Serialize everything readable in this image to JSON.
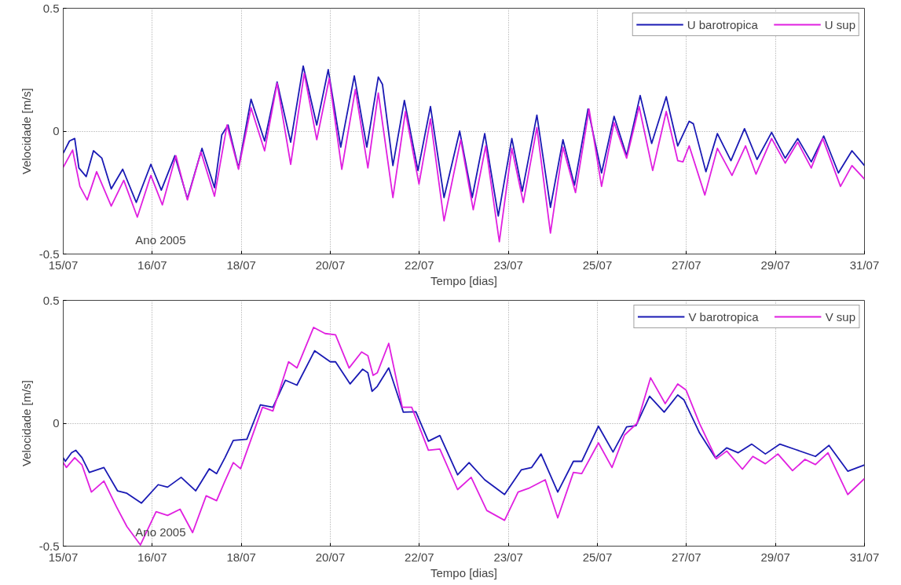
{
  "chart_data": [
    {
      "type": "line",
      "xlabel": "Tempo [dias]",
      "ylabel": "Velocidade [m/s]",
      "annotations": [
        "Ano 2005"
      ],
      "xlim": [
        "2005-07-15T00:00",
        "2005-07-31T00:00"
      ],
      "xticks": [
        {
          "value": "2005-07-15T00:00",
          "label": "15/07"
        },
        {
          "value": "2005-07-16T18:40",
          "label": "16/07"
        },
        {
          "value": "2005-07-18T13:20",
          "label": "18/07"
        },
        {
          "value": "2005-07-20T08:00",
          "label": "20/07"
        },
        {
          "value": "2005-07-22T02:40",
          "label": "22/07"
        },
        {
          "value": "2005-07-23T21:20",
          "label": "23/07"
        },
        {
          "value": "2005-07-25T16:00",
          "label": "25/07"
        },
        {
          "value": "2005-07-27T10:40",
          "label": "27/07"
        },
        {
          "value": "2005-07-29T05:20",
          "label": "29/07"
        },
        {
          "value": "2005-07-31T00:00",
          "label": "31/07"
        }
      ],
      "ylim": [
        -0.5,
        0.5
      ],
      "yticks": [
        -0.5,
        0,
        0.5
      ],
      "grid": true,
      "legend": "top right",
      "line_style": "solid",
      "series": [
        {
          "name": "U barotropica",
          "color": "#1a1ab4",
          "x": [
            "2005-07-15T00:00",
            "2005-07-15T03:00",
            "2005-07-15T05:30",
            "2005-07-15T07:30",
            "2005-07-15T11:00",
            "2005-07-15T14:30",
            "2005-07-15T18:30",
            "2005-07-15T23:00",
            "2005-07-16T04:30",
            "2005-07-16T11:00",
            "2005-07-16T18:00",
            "2005-07-16T23:00",
            "2005-07-17T05:30",
            "2005-07-17T11:30",
            "2005-07-17T18:30",
            "2005-07-18T00:30",
            "2005-07-18T04:00",
            "2005-07-18T07:00",
            "2005-07-18T12:00",
            "2005-07-18T18:00",
            "2005-07-19T00:30",
            "2005-07-19T06:30",
            "2005-07-19T13:00",
            "2005-07-19T19:00",
            "2005-07-20T01:30",
            "2005-07-20T07:00",
            "2005-07-20T13:00",
            "2005-07-20T19:30",
            "2005-07-21T01:30",
            "2005-07-21T07:00",
            "2005-07-21T09:00",
            "2005-07-21T14:00",
            "2005-07-21T19:30",
            "2005-07-22T02:00",
            "2005-07-22T08:00",
            "2005-07-22T14:30",
            "2005-07-22T22:00",
            "2005-07-23T04:00",
            "2005-07-23T10:00",
            "2005-07-23T16:30",
            "2005-07-23T23:00",
            "2005-07-24T04:00",
            "2005-07-24T11:00",
            "2005-07-24T17:30",
            "2005-07-24T23:30",
            "2005-07-25T05:00",
            "2005-07-25T11:30",
            "2005-07-25T18:00",
            "2005-07-26T00:00",
            "2005-07-26T06:00",
            "2005-07-26T12:30",
            "2005-07-26T18:00",
            "2005-07-27T01:00",
            "2005-07-27T06:30",
            "2005-07-27T12:00",
            "2005-07-27T14:00",
            "2005-07-27T20:00",
            "2005-07-28T01:30",
            "2005-07-28T08:00",
            "2005-07-28T14:30",
            "2005-07-28T20:30",
            "2005-07-29T03:30",
            "2005-07-29T10:00",
            "2005-07-29T16:00",
            "2005-07-29T22:30",
            "2005-07-30T04:30",
            "2005-07-30T11:30",
            "2005-07-30T18:00",
            "2005-07-31T00:00"
          ],
          "values": [
            -0.09,
            -0.04,
            -0.03,
            -0.15,
            -0.185,
            -0.08,
            -0.11,
            -0.235,
            -0.155,
            -0.29,
            -0.135,
            -0.24,
            -0.1,
            -0.275,
            -0.07,
            -0.23,
            -0.015,
            0.025,
            -0.15,
            0.13,
            -0.04,
            0.2,
            -0.045,
            0.265,
            0.025,
            0.25,
            -0.065,
            0.225,
            -0.065,
            0.22,
            0.19,
            -0.14,
            0.125,
            -0.16,
            0.1,
            -0.27,
            0.0,
            -0.27,
            -0.01,
            -0.345,
            -0.03,
            -0.245,
            0.065,
            -0.31,
            -0.035,
            -0.22,
            0.09,
            -0.17,
            0.06,
            -0.1,
            0.145,
            -0.05,
            0.14,
            -0.06,
            0.04,
            0.03,
            -0.165,
            -0.01,
            -0.12,
            0.01,
            -0.115,
            -0.005,
            -0.11,
            -0.03,
            -0.125,
            -0.02,
            -0.17,
            -0.08,
            -0.14
          ]
        },
        {
          "name": "U sup",
          "color": "#e020e0",
          "x": [
            "2005-07-15T00:00",
            "2005-07-15T04:30",
            "2005-07-15T08:00",
            "2005-07-15T11:30",
            "2005-07-15T16:00",
            "2005-07-15T23:00",
            "2005-07-16T05:00",
            "2005-07-16T11:30",
            "2005-07-16T18:00",
            "2005-07-16T23:30",
            "2005-07-17T06:00",
            "2005-07-17T11:30",
            "2005-07-17T18:00",
            "2005-07-18T00:30",
            "2005-07-18T06:30",
            "2005-07-18T12:00",
            "2005-07-18T18:00",
            "2005-07-19T00:30",
            "2005-07-19T06:30",
            "2005-07-19T13:00",
            "2005-07-19T19:30",
            "2005-07-20T01:30",
            "2005-07-20T07:30",
            "2005-07-20T13:30",
            "2005-07-20T20:00",
            "2005-07-21T02:00",
            "2005-07-21T07:00",
            "2005-07-21T14:00",
            "2005-07-21T20:00",
            "2005-07-22T02:30",
            "2005-07-22T08:00",
            "2005-07-22T14:30",
            "2005-07-22T22:30",
            "2005-07-23T04:30",
            "2005-07-23T10:30",
            "2005-07-23T17:00",
            "2005-07-23T23:00",
            "2005-07-24T04:30",
            "2005-07-24T11:00",
            "2005-07-24T17:30",
            "2005-07-24T23:30",
            "2005-07-25T05:30",
            "2005-07-25T12:00",
            "2005-07-25T18:00",
            "2005-07-26T00:00",
            "2005-07-26T06:00",
            "2005-07-26T12:00",
            "2005-07-26T18:30",
            "2005-07-27T01:00",
            "2005-07-27T06:30",
            "2005-07-27T09:00",
            "2005-07-27T12:00",
            "2005-07-27T19:30",
            "2005-07-28T01:30",
            "2005-07-28T08:30",
            "2005-07-28T15:00",
            "2005-07-28T20:00",
            "2005-07-29T03:30",
            "2005-07-29T10:00",
            "2005-07-29T16:00",
            "2005-07-29T22:30",
            "2005-07-30T04:00",
            "2005-07-30T12:30",
            "2005-07-30T18:00",
            "2005-07-31T00:00"
          ],
          "values": [
            -0.147,
            -0.077,
            -0.225,
            -0.28,
            -0.165,
            -0.305,
            -0.2,
            -0.35,
            -0.18,
            -0.3,
            -0.1,
            -0.28,
            -0.085,
            -0.265,
            0.025,
            -0.155,
            0.095,
            -0.08,
            0.195,
            -0.135,
            0.235,
            -0.035,
            0.215,
            -0.155,
            0.17,
            -0.15,
            0.155,
            -0.27,
            0.08,
            -0.215,
            0.05,
            -0.365,
            -0.035,
            -0.32,
            -0.06,
            -0.45,
            -0.07,
            -0.29,
            0.015,
            -0.415,
            -0.065,
            -0.25,
            0.09,
            -0.225,
            0.035,
            -0.11,
            0.1,
            -0.16,
            0.08,
            -0.12,
            -0.125,
            -0.06,
            -0.26,
            -0.07,
            -0.18,
            -0.06,
            -0.175,
            -0.03,
            -0.13,
            -0.045,
            -0.15,
            -0.03,
            -0.225,
            -0.14,
            -0.195
          ]
        }
      ]
    },
    {
      "type": "line",
      "xlabel": "Tempo [dias]",
      "ylabel": "Velocidade [m/s]",
      "annotations": [
        "Ano 2005"
      ],
      "xlim": [
        "2005-07-15T00:00",
        "2005-07-31T00:00"
      ],
      "xticks": [
        {
          "value": "2005-07-15T00:00",
          "label": "15/07"
        },
        {
          "value": "2005-07-16T18:40",
          "label": "16/07"
        },
        {
          "value": "2005-07-18T13:20",
          "label": "18/07"
        },
        {
          "value": "2005-07-20T08:00",
          "label": "20/07"
        },
        {
          "value": "2005-07-22T02:40",
          "label": "22/07"
        },
        {
          "value": "2005-07-23T21:20",
          "label": "23/07"
        },
        {
          "value": "2005-07-25T16:00",
          "label": "25/07"
        },
        {
          "value": "2005-07-27T10:40",
          "label": "27/07"
        },
        {
          "value": "2005-07-29T05:20",
          "label": "29/07"
        },
        {
          "value": "2005-07-31T00:00",
          "label": "31/07"
        }
      ],
      "ylim": [
        -0.5,
        0.5
      ],
      "yticks": [
        -0.5,
        0,
        0.5
      ],
      "grid": true,
      "legend": "top right",
      "line_style": "solid",
      "series": [
        {
          "name": "V barotropica",
          "color": "#1a1ab4",
          "x": [
            "2005-07-15T00:00",
            "2005-07-15T01:00",
            "2005-07-15T04:00",
            "2005-07-15T06:00",
            "2005-07-15T09:00",
            "2005-07-15T12:30",
            "2005-07-15T19:30",
            "2005-07-16T02:00",
            "2005-07-16T06:30",
            "2005-07-16T13:30",
            "2005-07-16T21:30",
            "2005-07-17T02:00",
            "2005-07-17T08:30",
            "2005-07-17T15:30",
            "2005-07-17T22:00",
            "2005-07-18T01:30",
            "2005-07-18T05:30",
            "2005-07-18T09:30",
            "2005-07-18T16:00",
            "2005-07-18T22:30",
            "2005-07-19T04:30",
            "2005-07-19T10:30",
            "2005-07-19T16:00",
            "2005-07-20T00:30",
            "2005-07-20T08:00",
            "2005-07-20T10:30",
            "2005-07-20T17:30",
            "2005-07-20T23:30",
            "2005-07-21T02:00",
            "2005-07-21T04:00",
            "2005-07-21T06:30",
            "2005-07-21T12:00",
            "2005-07-21T19:00",
            "2005-07-22T01:00",
            "2005-07-22T07:00",
            "2005-07-22T12:30",
            "2005-07-22T21:00",
            "2005-07-23T02:30",
            "2005-07-23T10:00",
            "2005-07-23T19:30",
            "2005-07-24T03:30",
            "2005-07-24T08:30",
            "2005-07-24T13:00",
            "2005-07-24T21:00",
            "2005-07-25T04:30",
            "2005-07-25T08:30",
            "2005-07-25T16:30",
            "2005-07-25T23:30",
            "2005-07-26T06:00",
            "2005-07-26T10:30",
            "2005-07-26T17:00",
            "2005-07-27T00:00",
            "2005-07-27T06:30",
            "2005-07-27T09:30",
            "2005-07-27T17:00",
            "2005-07-28T00:30",
            "2005-07-28T06:00",
            "2005-07-28T11:30",
            "2005-07-28T18:00",
            "2005-07-29T00:30",
            "2005-07-29T07:30",
            "2005-07-29T15:00",
            "2005-07-30T00:30",
            "2005-07-30T07:00",
            "2005-07-30T16:00",
            "2005-07-31T00:00"
          ],
          "values": [
            -0.14,
            -0.155,
            -0.12,
            -0.11,
            -0.14,
            -0.2,
            -0.18,
            -0.275,
            -0.285,
            -0.325,
            -0.25,
            -0.26,
            -0.22,
            -0.275,
            -0.185,
            -0.205,
            -0.14,
            -0.07,
            -0.065,
            0.075,
            0.065,
            0.175,
            0.155,
            0.295,
            0.25,
            0.25,
            0.16,
            0.22,
            0.205,
            0.13,
            0.15,
            0.225,
            0.045,
            0.047,
            -0.073,
            -0.05,
            -0.21,
            -0.16,
            -0.23,
            -0.29,
            -0.19,
            -0.18,
            -0.125,
            -0.28,
            -0.155,
            -0.155,
            -0.012,
            -0.117,
            -0.015,
            -0.01,
            0.11,
            0.045,
            0.115,
            0.095,
            -0.04,
            -0.14,
            -0.1,
            -0.12,
            -0.085,
            -0.125,
            -0.085,
            -0.107,
            -0.135,
            -0.09,
            -0.195,
            -0.17
          ]
        },
        {
          "name": "V sup",
          "color": "#e020e0",
          "x": [
            "2005-07-15T00:00",
            "2005-07-15T01:30",
            "2005-07-15T05:30",
            "2005-07-15T09:00",
            "2005-07-15T13:30",
            "2005-07-15T19:30",
            "2005-07-16T01:30",
            "2005-07-16T06:30",
            "2005-07-16T13:00",
            "2005-07-16T20:30",
            "2005-07-17T02:00",
            "2005-07-17T08:00",
            "2005-07-17T14:00",
            "2005-07-17T20:30",
            "2005-07-18T01:30",
            "2005-07-18T05:30",
            "2005-07-18T09:30",
            "2005-07-18T13:00",
            "2005-07-18T23:30",
            "2005-07-19T04:30",
            "2005-07-19T12:00",
            "2005-07-19T16:00",
            "2005-07-20T00:00",
            "2005-07-20T05:30",
            "2005-07-20T10:30",
            "2005-07-20T17:00",
            "2005-07-20T23:00",
            "2005-07-21T02:00",
            "2005-07-21T04:30",
            "2005-07-21T06:30",
            "2005-07-21T12:00",
            "2005-07-21T18:30",
            "2005-07-21T23:00",
            "2005-07-22T07:00",
            "2005-07-22T12:30",
            "2005-07-22T21:00",
            "2005-07-23T03:30",
            "2005-07-23T11:00",
            "2005-07-23T19:30",
            "2005-07-24T02:00",
            "2005-07-24T07:00",
            "2005-07-24T15:00",
            "2005-07-24T21:00",
            "2005-07-25T04:30",
            "2005-07-25T08:30",
            "2005-07-25T16:30",
            "2005-07-25T23:00",
            "2005-07-26T05:00",
            "2005-07-26T11:00",
            "2005-07-26T17:30",
            "2005-07-27T00:30",
            "2005-07-27T06:30",
            "2005-07-27T10:30",
            "2005-07-27T17:00",
            "2005-07-28T01:00",
            "2005-07-28T06:00",
            "2005-07-28T13:30",
            "2005-07-28T18:30",
            "2005-07-29T00:30",
            "2005-07-29T06:30",
            "2005-07-29T13:30",
            "2005-07-29T19:30",
            "2005-07-30T00:30",
            "2005-07-30T06:30",
            "2005-07-30T16:00",
            "2005-07-31T00:00"
          ],
          "values": [
            -0.16,
            -0.18,
            -0.14,
            -0.17,
            -0.28,
            -0.235,
            -0.34,
            -0.42,
            -0.495,
            -0.36,
            -0.375,
            -0.35,
            -0.445,
            -0.295,
            -0.315,
            -0.235,
            -0.16,
            -0.185,
            0.065,
            0.05,
            0.25,
            0.225,
            0.39,
            0.365,
            0.36,
            0.225,
            0.29,
            0.275,
            0.195,
            0.205,
            0.325,
            0.065,
            0.065,
            -0.11,
            -0.105,
            -0.27,
            -0.22,
            -0.355,
            -0.395,
            -0.28,
            -0.265,
            -0.23,
            -0.385,
            -0.2,
            -0.205,
            -0.08,
            -0.18,
            -0.048,
            0.0,
            0.185,
            0.08,
            0.16,
            0.135,
            -0.002,
            -0.145,
            -0.113,
            -0.187,
            -0.135,
            -0.165,
            -0.125,
            -0.193,
            -0.147,
            -0.168,
            -0.12,
            -0.29,
            -0.225
          ]
        }
      ]
    }
  ]
}
